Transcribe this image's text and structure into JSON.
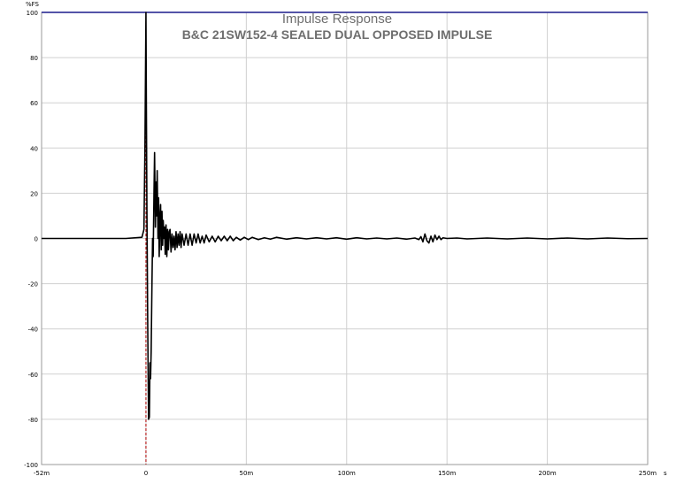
{
  "chart_data": {
    "type": "line",
    "title": "Impulse Response",
    "subtitle": "B&C 21SW152-4 SEALED DUAL OPPOSED IMPULSE",
    "y_unit": "%FS",
    "x_unit": "s",
    "xlim": [
      -52,
      250
    ],
    "ylim": [
      -100,
      100
    ],
    "grid": true,
    "x_ticks": [
      {
        "value": -52,
        "label": "-52m"
      },
      {
        "value": 0,
        "label": "0"
      },
      {
        "value": 50,
        "label": "50m"
      },
      {
        "value": 100,
        "label": "100m"
      },
      {
        "value": 150,
        "label": "150m"
      },
      {
        "value": 200,
        "label": "200m"
      },
      {
        "value": 250,
        "label": "250m"
      }
    ],
    "y_ticks": [
      {
        "value": 100,
        "label": "100"
      },
      {
        "value": 80,
        "label": "80"
      },
      {
        "value": 60,
        "label": "60"
      },
      {
        "value": 40,
        "label": "40"
      },
      {
        "value": 20,
        "label": "20"
      },
      {
        "value": 0,
        "label": "0"
      },
      {
        "value": -20,
        "label": "-20"
      },
      {
        "value": -40,
        "label": "-40"
      },
      {
        "value": -60,
        "label": "-60"
      },
      {
        "value": -80,
        "label": "-80"
      },
      {
        "value": -100,
        "label": "-100"
      }
    ],
    "markers": [
      {
        "x": 0,
        "color": "#b00000"
      }
    ],
    "series": [
      {
        "color": "#000000",
        "x": [
          -52,
          -10,
          -2,
          -1,
          -0.5,
          0,
          0.2,
          0.5,
          0.9,
          1.3,
          1.7,
          2.0,
          2.3,
          2.6,
          3.0,
          3.3,
          3.6,
          4.0,
          4.3,
          4.7,
          5.0,
          5.3,
          5.6,
          6.0,
          6.3,
          6.6,
          7.0,
          7.3,
          7.6,
          8.0,
          8.3,
          8.6,
          9.0,
          9.3,
          9.6,
          10.0,
          10.4,
          10.8,
          11.2,
          11.6,
          12.0,
          12.5,
          13.0,
          13.5,
          14.0,
          14.5,
          15.0,
          15.5,
          16.0,
          16.5,
          17.0,
          17.5,
          18.0,
          19.0,
          20.0,
          21.0,
          22.0,
          23.0,
          24.0,
          25.0,
          26.0,
          27.0,
          28.0,
          29.0,
          30.0,
          31.5,
          33.0,
          34.5,
          36.0,
          37.5,
          39.0,
          40.5,
          42.0,
          43.5,
          45.0,
          47.0,
          49.0,
          51.0,
          53.0,
          56.0,
          59.0,
          62.0,
          65.0,
          70.0,
          75.0,
          80.0,
          85.0,
          90.0,
          95.0,
          100.0,
          105.0,
          110.0,
          115.0,
          120.0,
          125.0,
          130.0,
          134.0,
          136.0,
          137.0,
          138.0,
          139.0,
          140.0,
          141.0,
          142.0,
          143.0,
          144.0,
          145.0,
          146.0,
          147.0,
          148.0,
          150.0,
          155.0,
          160.0,
          170.0,
          180.0,
          190.0,
          200.0,
          210.0,
          220.0,
          230.0,
          240.0,
          250.0
        ],
        "y": [
          0,
          0,
          0.5,
          4,
          40,
          100,
          60,
          10,
          -40,
          -80,
          -79,
          -55,
          -62,
          -50,
          -20,
          0,
          -8,
          20,
          38,
          5,
          25,
          10,
          30,
          0,
          18,
          -8,
          10,
          15,
          -5,
          12,
          -3,
          8,
          0,
          5,
          -7,
          6,
          -8,
          4,
          -5,
          3,
          4,
          -6,
          2,
          -4,
          1,
          -5,
          3,
          -4,
          2,
          -3,
          3,
          -4,
          2,
          -3,
          2,
          -3,
          2,
          -3,
          2,
          -2,
          2,
          -2,
          1,
          -2,
          1.5,
          -1.5,
          1,
          -1.5,
          1,
          -1,
          1,
          -1,
          1,
          -1,
          0.5,
          -0.7,
          0.5,
          -0.5,
          0.5,
          -0.5,
          0.3,
          -0.3,
          0.5,
          -0.3,
          0.3,
          -0.2,
          0.3,
          -0.2,
          0.3,
          -0.3,
          0.3,
          -0.2,
          0.2,
          -0.2,
          0.2,
          -0.3,
          0.2,
          -0.5,
          0.8,
          -1.5,
          2,
          -1,
          -2,
          1,
          -1.5,
          1.5,
          -0.5,
          1,
          -0.5,
          0.3,
          0,
          0.2,
          -0.2,
          0.2,
          -0.2,
          0.2,
          -0.2,
          0.2,
          -0.2,
          0.2,
          -0.1,
          0
        ]
      }
    ]
  }
}
